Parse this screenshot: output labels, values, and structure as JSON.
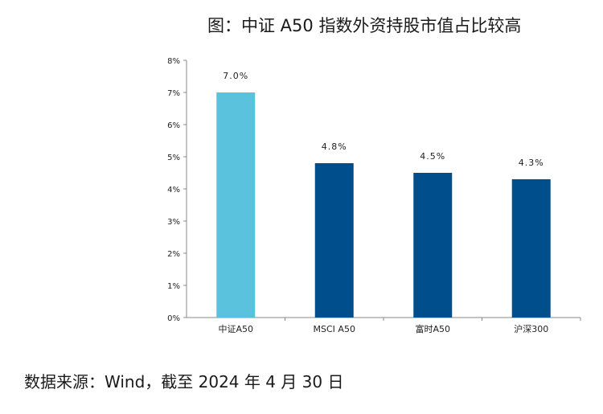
{
  "page": {
    "title": "图：中证 A50 指数外资持股市值占比较高",
    "source": "数据来源：Wind，截至 2024 年 4 月 30 日"
  },
  "chart_data": {
    "type": "bar",
    "title": "图：中证 A50 指数外资持股市值占比较高",
    "xlabel": "",
    "ylabel": "",
    "categories": [
      "中证A50",
      "MSCI A50",
      "富时A50",
      "沪深300"
    ],
    "values": [
      7.0,
      4.8,
      4.5,
      4.3
    ],
    "data_labels": [
      "7.0%",
      "4.8%",
      "4.5%",
      "4.3%"
    ],
    "ylim": [
      0,
      8
    ],
    "yticks": [
      0,
      1,
      2,
      3,
      4,
      5,
      6,
      7,
      8
    ],
    "ytick_labels": [
      "0%",
      "1%",
      "2%",
      "3%",
      "4%",
      "5%",
      "6%",
      "7%",
      "8%"
    ],
    "grid": false,
    "legend": "none",
    "colors": {
      "highlight": "#5BC2DE",
      "default": "#004F8C",
      "axis": "#888888",
      "text": "#222222"
    },
    "highlight_index": 0
  }
}
